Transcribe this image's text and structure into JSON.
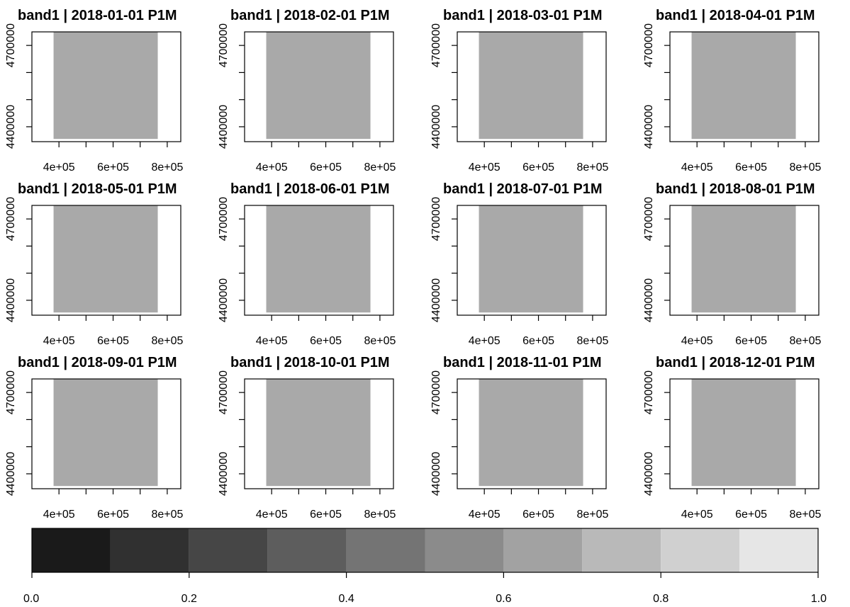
{
  "chart_data": {
    "type": "heatmap",
    "panels": [
      {
        "title": "band1 | 2018-01-01 P1M"
      },
      {
        "title": "band1 | 2018-02-01 P1M"
      },
      {
        "title": "band1 | 2018-03-01 P1M"
      },
      {
        "title": "band1 | 2018-04-01 P1M"
      },
      {
        "title": "band1 | 2018-05-01 P1M"
      },
      {
        "title": "band1 | 2018-06-01 P1M"
      },
      {
        "title": "band1 | 2018-07-01 P1M"
      },
      {
        "title": "band1 | 2018-08-01 P1M"
      },
      {
        "title": "band1 | 2018-09-01 P1M"
      },
      {
        "title": "band1 | 2018-10-01 P1M"
      },
      {
        "title": "band1 | 2018-11-01 P1M"
      },
      {
        "title": "band1 | 2018-12-01 P1M"
      }
    ],
    "layout": {
      "rows": 3,
      "cols": 4
    },
    "raster": {
      "x_extent": [
        380000,
        765000
      ],
      "y_extent": [
        4355000,
        4760000
      ],
      "value": 0.6,
      "color": "#a9a9a9"
    },
    "xlim": [
      300000,
      850000
    ],
    "ylim": [
      4345000,
      4750000
    ],
    "x_ticks": [
      {
        "value": 400000,
        "label": "4e+05"
      },
      {
        "value": 500000,
        "label": ""
      },
      {
        "value": 600000,
        "label": "6e+05"
      },
      {
        "value": 700000,
        "label": ""
      },
      {
        "value": 800000,
        "label": "8e+05"
      }
    ],
    "y_ticks": [
      {
        "value": 4400000,
        "label": "4400000"
      },
      {
        "value": 4500000,
        "label": ""
      },
      {
        "value": 4600000,
        "label": ""
      },
      {
        "value": 4700000,
        "label": "4700000"
      }
    ],
    "colorbar": {
      "range": [
        0.0,
        1.0
      ],
      "bins": [
        {
          "from": 0.0,
          "to": 0.1,
          "color": "#1a1a1a"
        },
        {
          "from": 0.1,
          "to": 0.2,
          "color": "#303030"
        },
        {
          "from": 0.2,
          "to": 0.3,
          "color": "#464646"
        },
        {
          "from": 0.3,
          "to": 0.4,
          "color": "#5d5d5d"
        },
        {
          "from": 0.4,
          "to": 0.5,
          "color": "#747474"
        },
        {
          "from": 0.5,
          "to": 0.6,
          "color": "#8b8b8b"
        },
        {
          "from": 0.6,
          "to": 0.7,
          "color": "#a2a2a2"
        },
        {
          "from": 0.7,
          "to": 0.8,
          "color": "#b9b9b9"
        },
        {
          "from": 0.8,
          "to": 0.9,
          "color": "#d0d0d0"
        },
        {
          "from": 0.9,
          "to": 1.0,
          "color": "#e6e6e6"
        }
      ],
      "ticks": [
        {
          "value": 0.0,
          "label": "0.0"
        },
        {
          "value": 0.2,
          "label": "0.2"
        },
        {
          "value": 0.4,
          "label": "0.4"
        },
        {
          "value": 0.6,
          "label": "0.6"
        },
        {
          "value": 0.8,
          "label": "0.8"
        },
        {
          "value": 1.0,
          "label": "1.0"
        }
      ]
    },
    "colors": {
      "axis": "#000000",
      "background": "#ffffff"
    }
  }
}
